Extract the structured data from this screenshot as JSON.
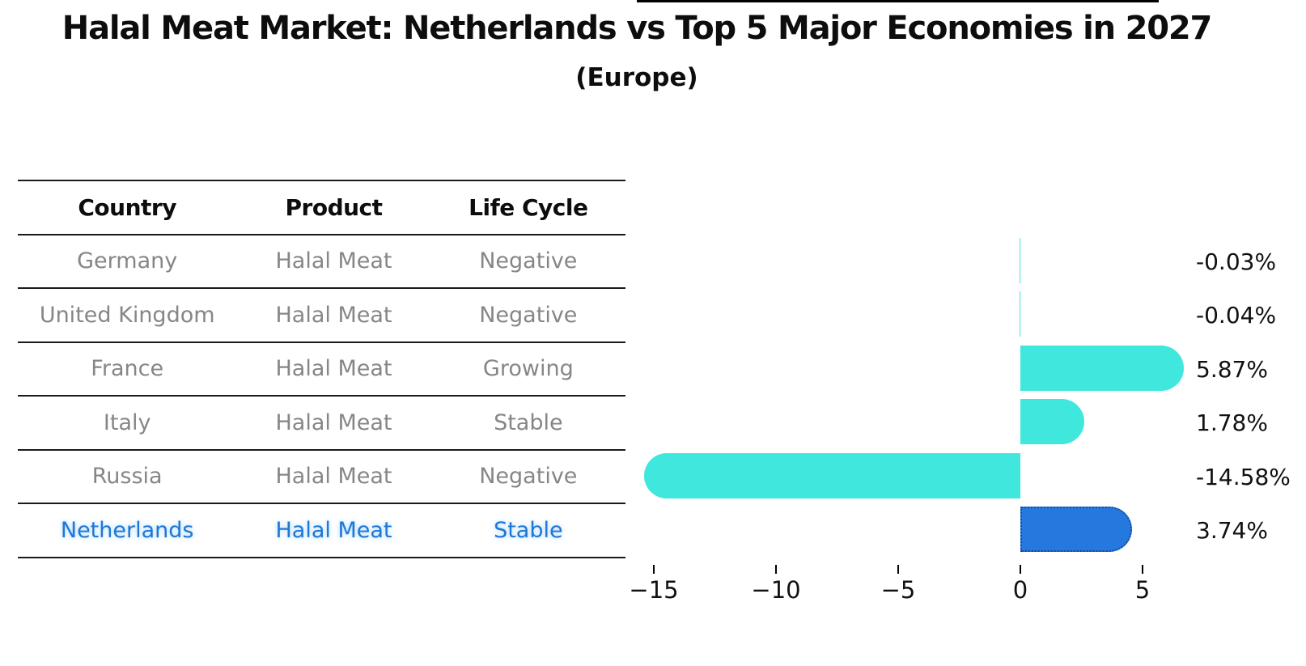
{
  "title": "Halal Meat Market: Netherlands vs Top 5 Major Economies in 2027",
  "subtitle": "(Europe)",
  "table": {
    "headers": [
      "Country",
      "Product",
      "Life Cycle"
    ],
    "rows": [
      {
        "country": "Germany",
        "product": "Halal Meat",
        "life_cycle": "Negative",
        "highlight": false
      },
      {
        "country": "United Kingdom",
        "product": "Halal Meat",
        "life_cycle": "Negative",
        "highlight": false
      },
      {
        "country": "France",
        "product": "Halal Meat",
        "life_cycle": "Growing",
        "highlight": false
      },
      {
        "country": "Italy",
        "product": "Halal Meat",
        "life_cycle": "Stable",
        "highlight": false
      },
      {
        "country": "Russia",
        "product": "Halal Meat",
        "life_cycle": "Negative",
        "highlight": false
      },
      {
        "country": "Netherlands",
        "product": "Halal Meat",
        "life_cycle": "Stable",
        "highlight": true
      }
    ]
  },
  "chart_data": {
    "type": "bar",
    "orientation": "horizontal",
    "title": "Halal Meat Market: Netherlands vs Top 5 Major Economies in 2027",
    "subtitle": "(Europe)",
    "categories": [
      "Germany",
      "United Kingdom",
      "France",
      "Italy",
      "Russia",
      "Netherlands"
    ],
    "values": [
      -0.03,
      -0.04,
      5.87,
      1.78,
      -14.58,
      3.74
    ],
    "value_labels": [
      "-0.03%",
      "-0.04%",
      "5.87%",
      "1.78%",
      "-14.58%",
      "3.74%"
    ],
    "x_ticks": [
      -15,
      -10,
      -5,
      0,
      5
    ],
    "x_tick_labels": [
      "−15",
      "−10",
      "−5",
      "0",
      "5"
    ],
    "xlim": [
      -15.7,
      5.7
    ],
    "grid": false,
    "legend": false,
    "highlight_index": 5,
    "xlabel": "",
    "ylabel": ""
  },
  "colors": {
    "bar_default": "#40E7DC",
    "bar_highlight": "#2478DE",
    "bar_highlight_border": "#1a4a9e",
    "highlight_text": "#1f77d4",
    "table_text": "#868686",
    "header_text": "#0d0d0d",
    "axis": "#000000"
  }
}
